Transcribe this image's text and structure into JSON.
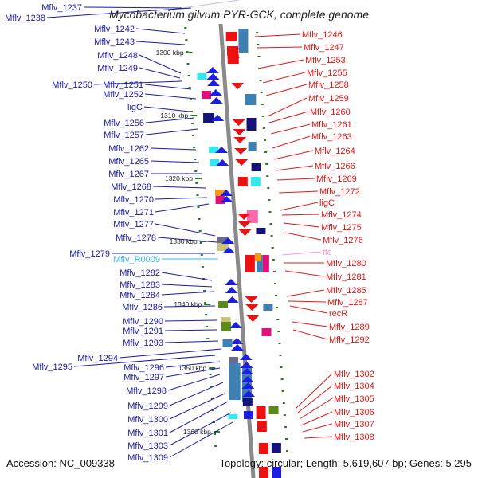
{
  "title": "Mycobacterium gilvum PYR-GCK, complete genome",
  "footer": {
    "accession": "Accession: NC_009338",
    "summary": "Topology: circular; Length: 5,619,607 bp; Genes: 5,295"
  },
  "colors": {
    "left_label": "#1a1aa8",
    "right_label": "#e01818",
    "rna_label": "#ff9ad5",
    "backbone": "#8a8a8a",
    "tick": "#2a7a1a"
  },
  "ticks": [
    {
      "label": "1300 kbp"
    },
    {
      "label": "1310 kbp"
    },
    {
      "label": "1320 kbp"
    },
    {
      "label": "1330 kbp"
    },
    {
      "label": "1340 kbp"
    },
    {
      "label": "1350 kbp"
    },
    {
      "label": "1360 kbp"
    }
  ],
  "left_labels": [
    {
      "text": "Mflv_1237"
    },
    {
      "text": "Mflv_1238"
    },
    {
      "text": "Mflv_1242"
    },
    {
      "text": "Mflv_1243"
    },
    {
      "text": "Mflv_1248"
    },
    {
      "text": "Mflv_1249"
    },
    {
      "text": "Mflv_1250"
    },
    {
      "text": "Mflv_1251"
    },
    {
      "text": "Mflv_1252"
    },
    {
      "text": "ligC"
    },
    {
      "text": "Mflv_1256"
    },
    {
      "text": "Mflv_1257"
    },
    {
      "text": "Mflv_1262"
    },
    {
      "text": "Mflv_1265"
    },
    {
      "text": "Mflv_1267"
    },
    {
      "text": "Mflv_1268"
    },
    {
      "text": "Mflv_1270"
    },
    {
      "text": "Mflv_1271"
    },
    {
      "text": "Mflv_1277"
    },
    {
      "text": "Mflv_1278"
    },
    {
      "text": "Mflv_1279"
    },
    {
      "text": "Mflv_R0009",
      "rna": true
    },
    {
      "text": "Mflv_1282"
    },
    {
      "text": "Mflv_1283"
    },
    {
      "text": "Mflv_1284"
    },
    {
      "text": "Mflv_1286"
    },
    {
      "text": "Mflv_1290"
    },
    {
      "text": "Mflv_1291"
    },
    {
      "text": "Mflv_1293"
    },
    {
      "text": "Mflv_1294"
    },
    {
      "text": "Mflv_1295"
    },
    {
      "text": "Mflv_1296"
    },
    {
      "text": "Mflv_1297"
    },
    {
      "text": "Mflv_1298"
    },
    {
      "text": "Mflv_1299"
    },
    {
      "text": "Mflv_1300"
    },
    {
      "text": "Mflv_1301"
    },
    {
      "text": "Mflv_1303"
    },
    {
      "text": "Mflv_1309"
    }
  ],
  "right_labels": [
    {
      "text": "Mflv_1246"
    },
    {
      "text": "Mflv_1247"
    },
    {
      "text": "Mflv_1253"
    },
    {
      "text": "Mflv_1255"
    },
    {
      "text": "Mflv_1258"
    },
    {
      "text": "Mflv_1259"
    },
    {
      "text": "Mflv_1260"
    },
    {
      "text": "Mflv_1261"
    },
    {
      "text": "Mflv_1263"
    },
    {
      "text": "Mflv_1264"
    },
    {
      "text": "Mflv_1266"
    },
    {
      "text": "Mflv_1269"
    },
    {
      "text": "Mflv_1272"
    },
    {
      "text": "ligC"
    },
    {
      "text": "Mflv_1274"
    },
    {
      "text": "Mflv_1275"
    },
    {
      "text": "Mflv_1276"
    },
    {
      "text": "ffs",
      "rna": true
    },
    {
      "text": "Mflv_1280"
    },
    {
      "text": "Mflv_1281"
    },
    {
      "text": "Mflv_1285"
    },
    {
      "text": "Mflv_1287"
    },
    {
      "text": "recR"
    },
    {
      "text": "Mflv_1289"
    },
    {
      "text": "Mflv_1292"
    },
    {
      "text": "Mflv_1302"
    },
    {
      "text": "Mflv_1304"
    },
    {
      "text": "Mflv_1305"
    },
    {
      "text": "Mflv_1306"
    },
    {
      "text": "Mflv_1307"
    },
    {
      "text": "Mflv_1308"
    }
  ]
}
